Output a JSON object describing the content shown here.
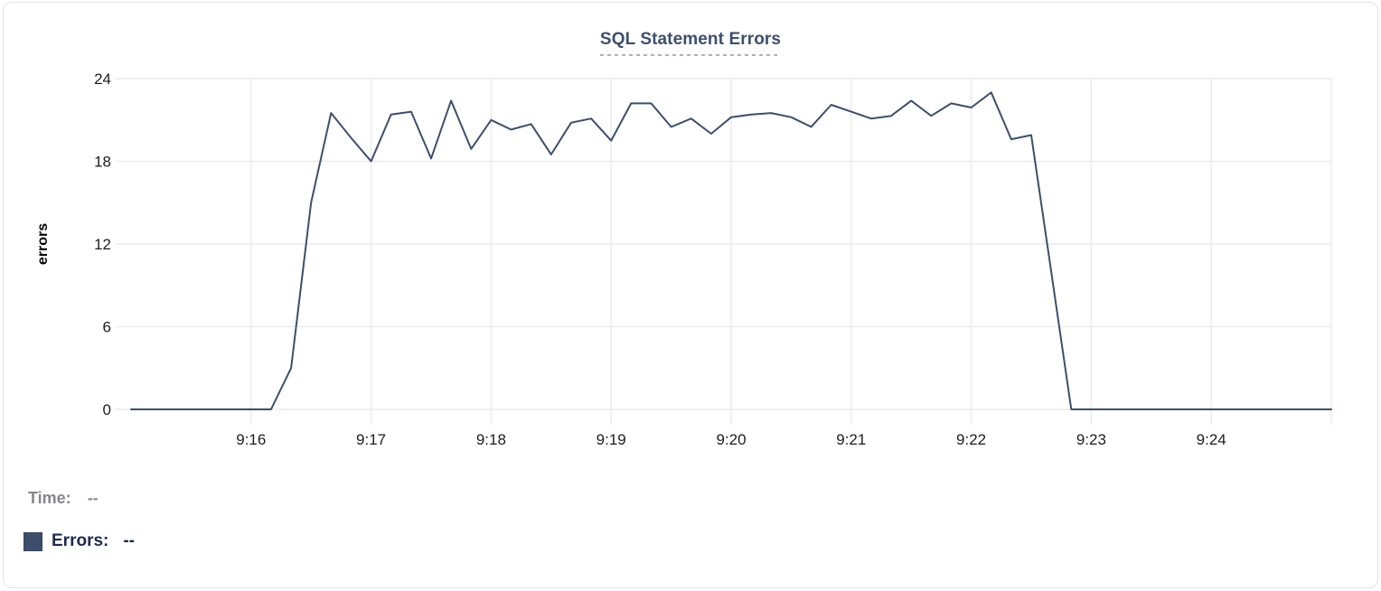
{
  "card": {
    "title": "SQL Statement Errors"
  },
  "legend": {
    "time_label": "Time:",
    "time_value": "--",
    "errors_label": "Errors:",
    "errors_value": "--",
    "swatch_color": "#3d4e6b"
  },
  "colors": {
    "line": "#3e4e6c",
    "title": "#3d4f6e",
    "title_underline": "#a7b3c9",
    "grid": "#ececee",
    "tick_label": "#1d1d1f",
    "axis_title": "#000000",
    "time_label": "#86868b",
    "errors_label": "#1d2a4e",
    "card_border": "#e4e4e7"
  },
  "chart_data": {
    "type": "line",
    "title": "SQL Statement Errors",
    "xlabel": "",
    "ylabel": "errors",
    "ylim": [
      0,
      24
    ],
    "yticks": [
      0,
      6,
      12,
      18,
      24
    ],
    "xtick_labels": [
      "9:16",
      "9:17",
      "9:18",
      "9:19",
      "9:20",
      "9:21",
      "9:22",
      "9:23",
      "9:24"
    ],
    "x_range": [
      "9:15:00",
      "9:25:00"
    ],
    "interval_seconds": 10,
    "grid": true,
    "legend_position": "bottom-left",
    "series": [
      {
        "name": "Errors",
        "color": "#3e4e6c",
        "x": [
          "9:15:00",
          "9:15:10",
          "9:15:20",
          "9:15:30",
          "9:15:40",
          "9:15:50",
          "9:16:00",
          "9:16:10",
          "9:16:20",
          "9:16:30",
          "9:16:40",
          "9:16:50",
          "9:17:00",
          "9:17:10",
          "9:17:20",
          "9:17:30",
          "9:17:40",
          "9:17:50",
          "9:18:00",
          "9:18:10",
          "9:18:20",
          "9:18:30",
          "9:18:40",
          "9:18:50",
          "9:19:00",
          "9:19:10",
          "9:19:20",
          "9:19:30",
          "9:19:40",
          "9:19:50",
          "9:20:00",
          "9:20:10",
          "9:20:20",
          "9:20:30",
          "9:20:40",
          "9:20:50",
          "9:21:00",
          "9:21:10",
          "9:21:20",
          "9:21:30",
          "9:21:40",
          "9:21:50",
          "9:22:00",
          "9:22:10",
          "9:22:20",
          "9:22:30",
          "9:22:40",
          "9:22:50",
          "9:23:00",
          "9:23:10",
          "9:23:20",
          "9:23:30",
          "9:23:40",
          "9:23:50",
          "9:24:00",
          "9:24:10",
          "9:24:20",
          "9:24:30",
          "9:24:40",
          "9:24:50",
          "9:25:00"
        ],
        "values": [
          0,
          0,
          0,
          0,
          0,
          0,
          0,
          0,
          3,
          15,
          21.5,
          19.7,
          18,
          21.4,
          21.6,
          18.2,
          22.4,
          18.9,
          21,
          20.3,
          20.7,
          18.5,
          20.8,
          21.1,
          19.5,
          22.2,
          22.2,
          20.5,
          21.1,
          20,
          21.2,
          21.4,
          21.5,
          21.2,
          20.5,
          22.1,
          21.6,
          21.1,
          21.3,
          22.4,
          21.3,
          22.2,
          21.9,
          23,
          19.6,
          19.9,
          10,
          0,
          0,
          0,
          0,
          0,
          0,
          0,
          0,
          0,
          0,
          0,
          0,
          0,
          0
        ]
      }
    ]
  }
}
